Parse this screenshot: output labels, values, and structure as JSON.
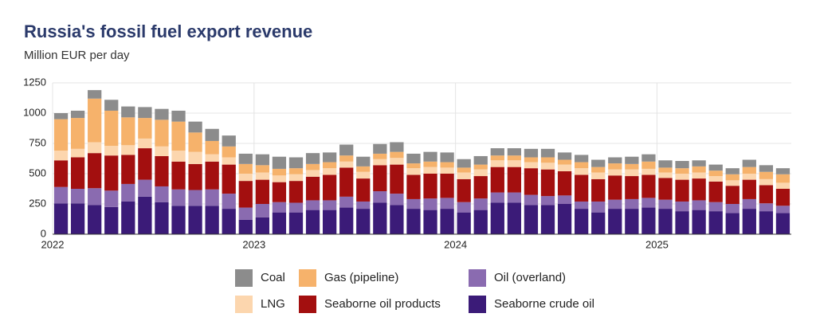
{
  "chart_data": {
    "type": "stacked_bar",
    "title": "Russia's fossil fuel export revenue",
    "subtitle": "Million EUR per day",
    "categories": [
      "2022",
      null,
      null,
      null,
      null,
      null,
      null,
      null,
      null,
      null,
      null,
      null,
      "2023",
      null,
      null,
      null,
      null,
      null,
      null,
      null,
      null,
      null,
      null,
      null,
      "2024",
      null,
      null,
      null,
      null,
      null,
      null,
      null,
      null,
      null,
      null,
      null,
      "2025",
      null,
      null,
      null,
      null,
      null,
      null,
      null
    ],
    "ylim": [
      0,
      1250
    ],
    "yticks": [
      0,
      250,
      500,
      750,
      1000,
      1250
    ],
    "grid": true,
    "series": [
      {
        "name": "Seaborne crude oil",
        "color": "#3b1b78",
        "values": [
          255,
          255,
          240,
          225,
          270,
          310,
          265,
          235,
          235,
          235,
          210,
          120,
          140,
          180,
          180,
          200,
          200,
          220,
          210,
          260,
          240,
          210,
          200,
          210,
          180,
          200,
          260,
          260,
          240,
          240,
          250,
          210,
          180,
          210,
          210,
          220,
          210,
          190,
          200,
          190,
          175,
          210,
          190,
          175
        ]
      },
      {
        "name": "Oil (overland)",
        "color": "#8a6bb0",
        "values": [
          135,
          120,
          140,
          135,
          145,
          140,
          130,
          135,
          130,
          135,
          125,
          100,
          110,
          85,
          80,
          80,
          80,
          90,
          60,
          95,
          95,
          80,
          95,
          90,
          85,
          95,
          85,
          85,
          85,
          75,
          70,
          60,
          90,
          75,
          80,
          80,
          75,
          80,
          80,
          75,
          75,
          80,
          65,
          60
        ]
      },
      {
        "name": "Seaborne oil products",
        "color": "#a30f0f",
        "values": [
          220,
          260,
          290,
          290,
          240,
          260,
          250,
          230,
          215,
          230,
          240,
          220,
          200,
          165,
          180,
          195,
          210,
          240,
          190,
          215,
          240,
          200,
          205,
          200,
          190,
          185,
          210,
          210,
          220,
          220,
          200,
          220,
          185,
          200,
          190,
          190,
          180,
          180,
          180,
          170,
          150,
          160,
          150,
          140
        ]
      },
      {
        "name": "LNG",
        "color": "#fcd6ae",
        "values": [
          80,
          70,
          90,
          80,
          80,
          80,
          80,
          90,
          100,
          60,
          60,
          60,
          60,
          55,
          55,
          55,
          55,
          50,
          55,
          50,
          55,
          55,
          55,
          50,
          55,
          55,
          55,
          55,
          50,
          55,
          55,
          55,
          55,
          50,
          55,
          50,
          45,
          50,
          50,
          45,
          45,
          50,
          50,
          50
        ]
      },
      {
        "name": "Gas (pipeline)",
        "color": "#f6b26b",
        "values": [
          260,
          255,
          360,
          290,
          230,
          170,
          220,
          240,
          160,
          110,
          90,
          80,
          60,
          55,
          50,
          50,
          50,
          50,
          45,
          45,
          50,
          40,
          45,
          45,
          40,
          40,
          40,
          40,
          40,
          45,
          40,
          50,
          45,
          50,
          45,
          60,
          40,
          45,
          50,
          45,
          50,
          55,
          60,
          70
        ]
      },
      {
        "name": "Coal",
        "color": "#8c8c8c",
        "values": [
          50,
          60,
          70,
          90,
          90,
          90,
          90,
          90,
          90,
          100,
          90,
          85,
          90,
          100,
          90,
          90,
          80,
          90,
          80,
          80,
          80,
          80,
          80,
          80,
          70,
          70,
          60,
          60,
          70,
          70,
          60,
          60,
          60,
          50,
          60,
          60,
          60,
          60,
          50,
          50,
          50,
          60,
          55,
          50
        ]
      }
    ]
  }
}
